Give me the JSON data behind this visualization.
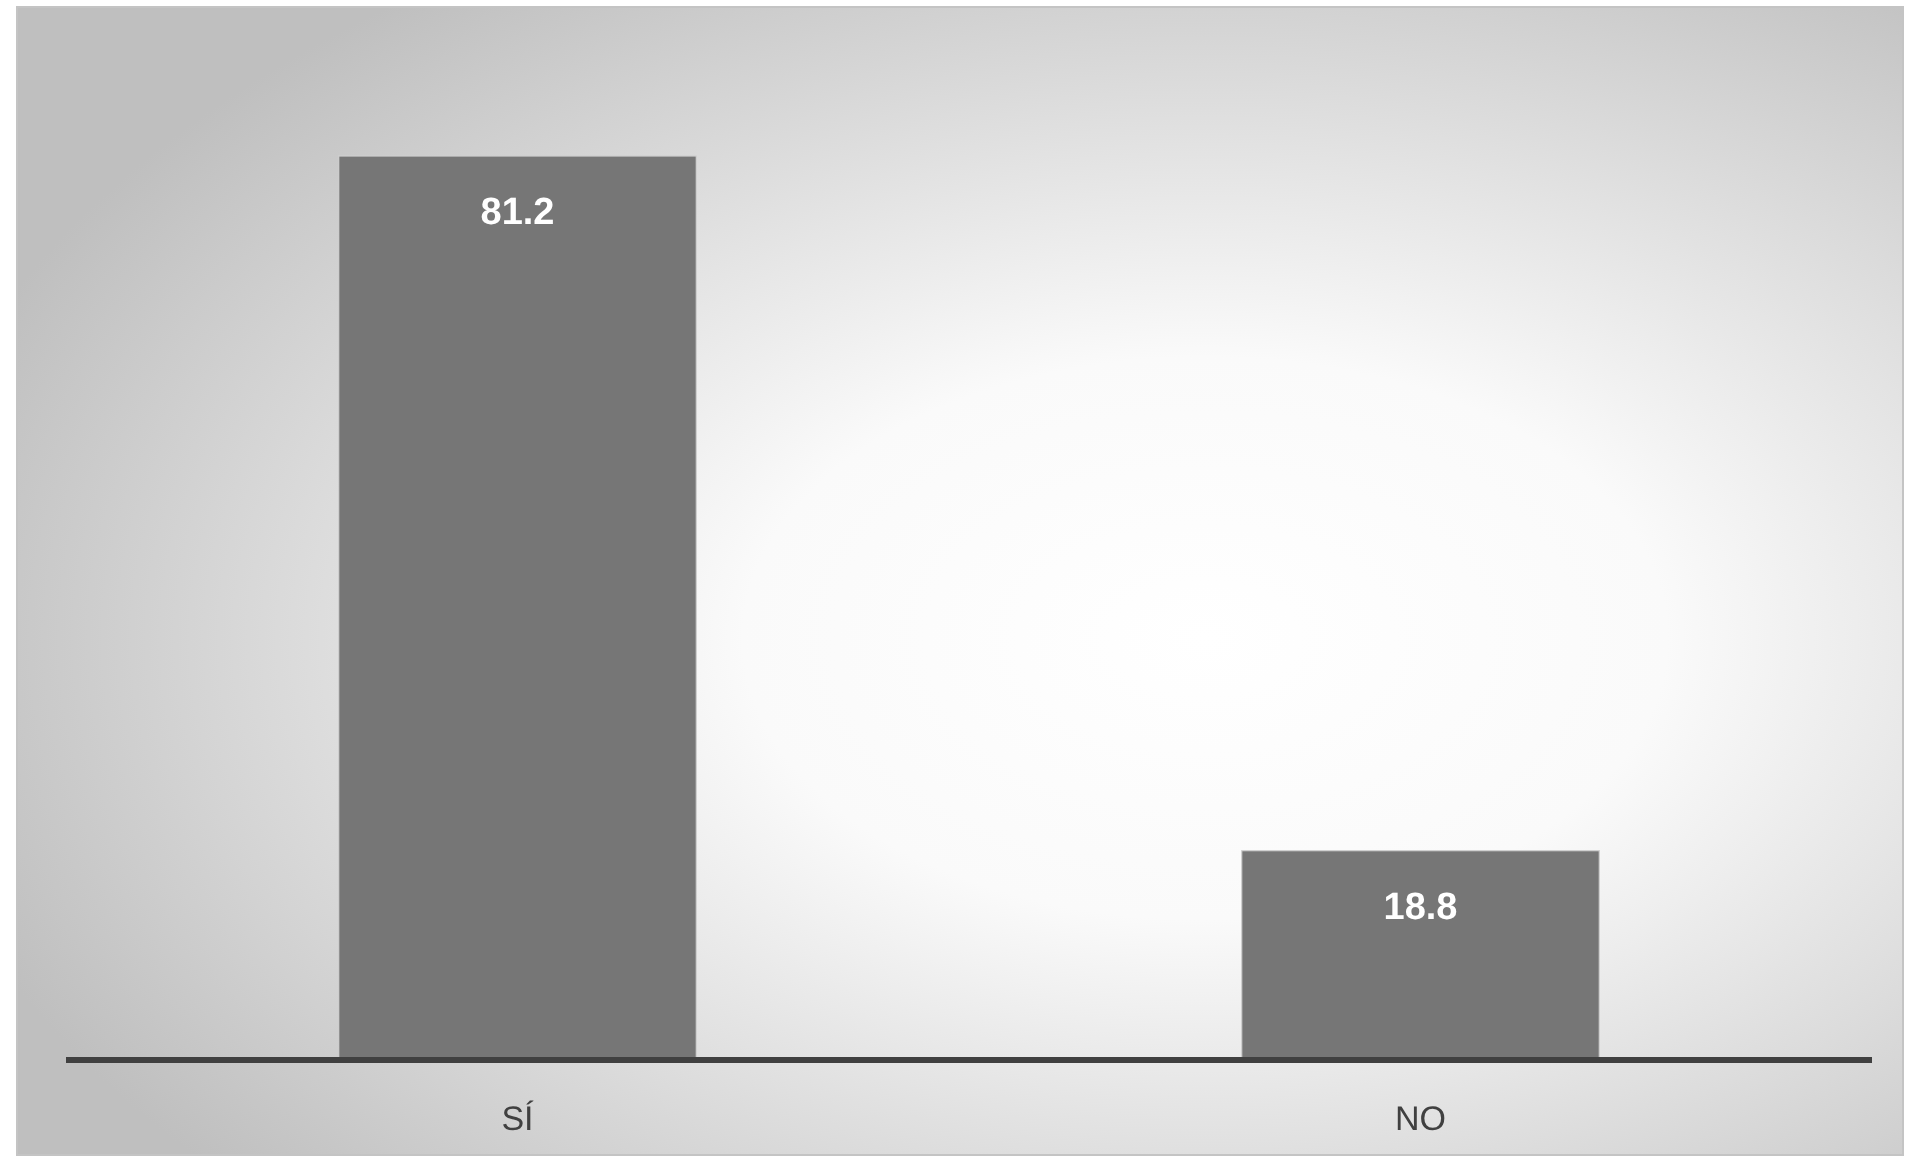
{
  "chart_data": {
    "type": "bar",
    "categories": [
      "SÍ",
      "NO"
    ],
    "values": [
      81.2,
      18.8
    ],
    "color": "#767676",
    "data_labels": true
  }
}
